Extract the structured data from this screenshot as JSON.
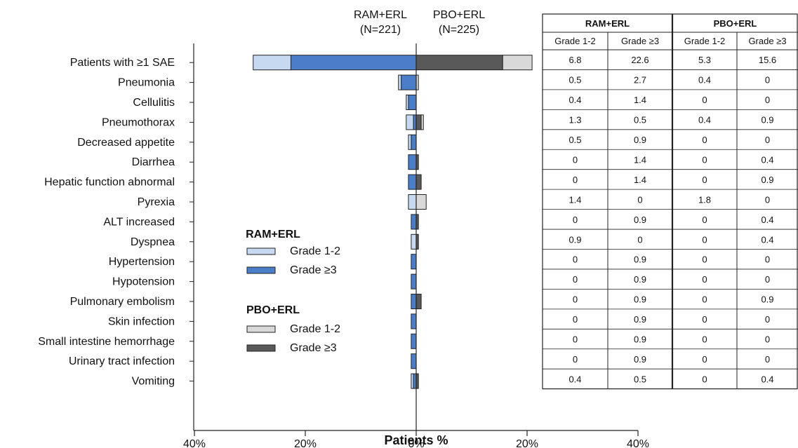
{
  "chart_data": {
    "type": "bar",
    "orientation": "horizontal",
    "stacked": true,
    "diverging": true,
    "xlabel": "Patients %",
    "xlim": [
      -40,
      40
    ],
    "xtick_labels": [
      "40%",
      "20%",
      "0%",
      "20%",
      "40%"
    ],
    "arms": [
      {
        "name": "RAM+ERL",
        "n_label": "(N=221)"
      },
      {
        "name": "PBO+ERL",
        "n_label": "(N=225)"
      }
    ],
    "categories": [
      "Patients with ≥1 SAE",
      "Pneumonia",
      "Cellulitis",
      "Pneumothorax",
      "Decreased appetite",
      "Diarrhea",
      "Hepatic function abnormal",
      "Pyrexia",
      "ALT increased",
      "Dyspnea",
      "Hypertension",
      "Hypotension",
      "Pulmonary embolism",
      "Skin infection",
      "Small intestine hemorrhage",
      "Urinary tract infection",
      "Vomiting"
    ],
    "series": [
      {
        "name": "Grade 1-2",
        "group": "RAM+ERL",
        "color": "#c6d9f0",
        "values": [
          6.8,
          0.5,
          0.4,
          1.3,
          0.5,
          0,
          0,
          1.4,
          0,
          0.9,
          0,
          0,
          0,
          0,
          0,
          0,
          0.4
        ]
      },
      {
        "name": "Grade ≥3",
        "group": "RAM+ERL",
        "color": "#4a7ec9",
        "values": [
          22.6,
          2.7,
          1.4,
          0.5,
          0.9,
          1.4,
          1.4,
          0,
          0.9,
          0,
          0.9,
          0.9,
          0.9,
          0.9,
          0.9,
          0.9,
          0.5
        ]
      },
      {
        "name": "Grade 1-2",
        "group": "PBO+ERL",
        "color": "#d9d9d9",
        "values": [
          5.3,
          0.4,
          0,
          0.4,
          0,
          0,
          0,
          1.8,
          0,
          0,
          0,
          0,
          0,
          0,
          0,
          0,
          0
        ]
      },
      {
        "name": "Grade ≥3",
        "group": "PBO+ERL",
        "color": "#595959",
        "values": [
          15.6,
          0,
          0,
          0.9,
          0,
          0.4,
          0.9,
          0,
          0.4,
          0.4,
          0,
          0,
          0.9,
          0,
          0,
          0,
          0.4
        ]
      }
    ],
    "legend": {
      "placement": "center-left",
      "groups": [
        {
          "title": "RAM+ERL",
          "items": [
            "Grade 1-2",
            "Grade ≥3"
          ],
          "colors": [
            "#c6d9f0",
            "#4a7ec9"
          ]
        },
        {
          "title": "PBO+ERL",
          "items": [
            "Grade 1-2",
            "Grade ≥3"
          ],
          "colors": [
            "#d9d9d9",
            "#595959"
          ]
        }
      ]
    },
    "table": {
      "groups": [
        "RAM+ERL",
        "PBO+ERL"
      ],
      "subheaders": [
        "Grade 1-2",
        "Grade ≥3",
        "Grade 1-2",
        "Grade ≥3"
      ],
      "rows": [
        [
          "6.8",
          "22.6",
          "5.3",
          "15.6"
        ],
        [
          "0.5",
          "2.7",
          "0.4",
          "0"
        ],
        [
          "0.4",
          "1.4",
          "0",
          "0"
        ],
        [
          "1.3",
          "0.5",
          "0.4",
          "0.9"
        ],
        [
          "0.5",
          "0.9",
          "0",
          "0"
        ],
        [
          "0",
          "1.4",
          "0",
          "0.4"
        ],
        [
          "0",
          "1.4",
          "0",
          "0.9"
        ],
        [
          "1.4",
          "0",
          "1.8",
          "0"
        ],
        [
          "0",
          "0.9",
          "0",
          "0.4"
        ],
        [
          "0.9",
          "0",
          "0",
          "0.4"
        ],
        [
          "0",
          "0.9",
          "0",
          "0"
        ],
        [
          "0",
          "0.9",
          "0",
          "0"
        ],
        [
          "0",
          "0.9",
          "0",
          "0.9"
        ],
        [
          "0",
          "0.9",
          "0",
          "0"
        ],
        [
          "0",
          "0.9",
          "0",
          "0"
        ],
        [
          "0",
          "0.9",
          "0",
          "0"
        ],
        [
          "0.4",
          "0.5",
          "0",
          "0.4"
        ]
      ]
    }
  }
}
